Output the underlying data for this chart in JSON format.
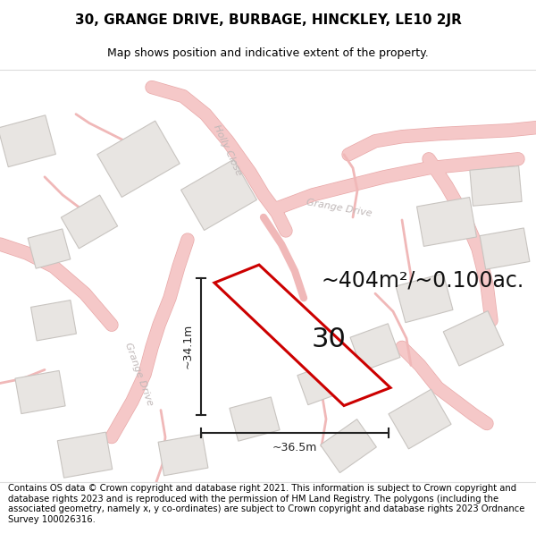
{
  "title": "30, GRANGE DRIVE, BURBAGE, HINCKLEY, LE10 2JR",
  "subtitle": "Map shows position and indicative extent of the property.",
  "area_label": "~404m²/~0.100ac.",
  "property_number": "30",
  "dim_vertical": "~34.1m",
  "dim_horizontal": "~36.5m",
  "footer": "Contains OS data © Crown copyright and database right 2021. This information is subject to Crown copyright and database rights 2023 and is reproduced with the permission of HM Land Registry. The polygons (including the associated geometry, namely x, y co-ordinates) are subject to Crown copyright and database rights 2023 Ordnance Survey 100026316.",
  "map_bg": "#faf8f7",
  "road_fill": "#f5c8c8",
  "road_edge": "#e8a8a8",
  "road_thin": "#f0b8b8",
  "building_fill": "#e8e5e2",
  "building_edge": "#c8c4c0",
  "property_fill": "#ffffff",
  "property_edge": "#cc0000",
  "street_color": "#c0b8b8",
  "arrow_color": "#222222",
  "area_color": "#111111",
  "title_fontsize": 11,
  "subtitle_fontsize": 9,
  "footer_fontsize": 7.2,
  "area_fontsize": 17,
  "street_fontsize": 8,
  "number_fontsize": 22,
  "dim_fontsize": 9
}
